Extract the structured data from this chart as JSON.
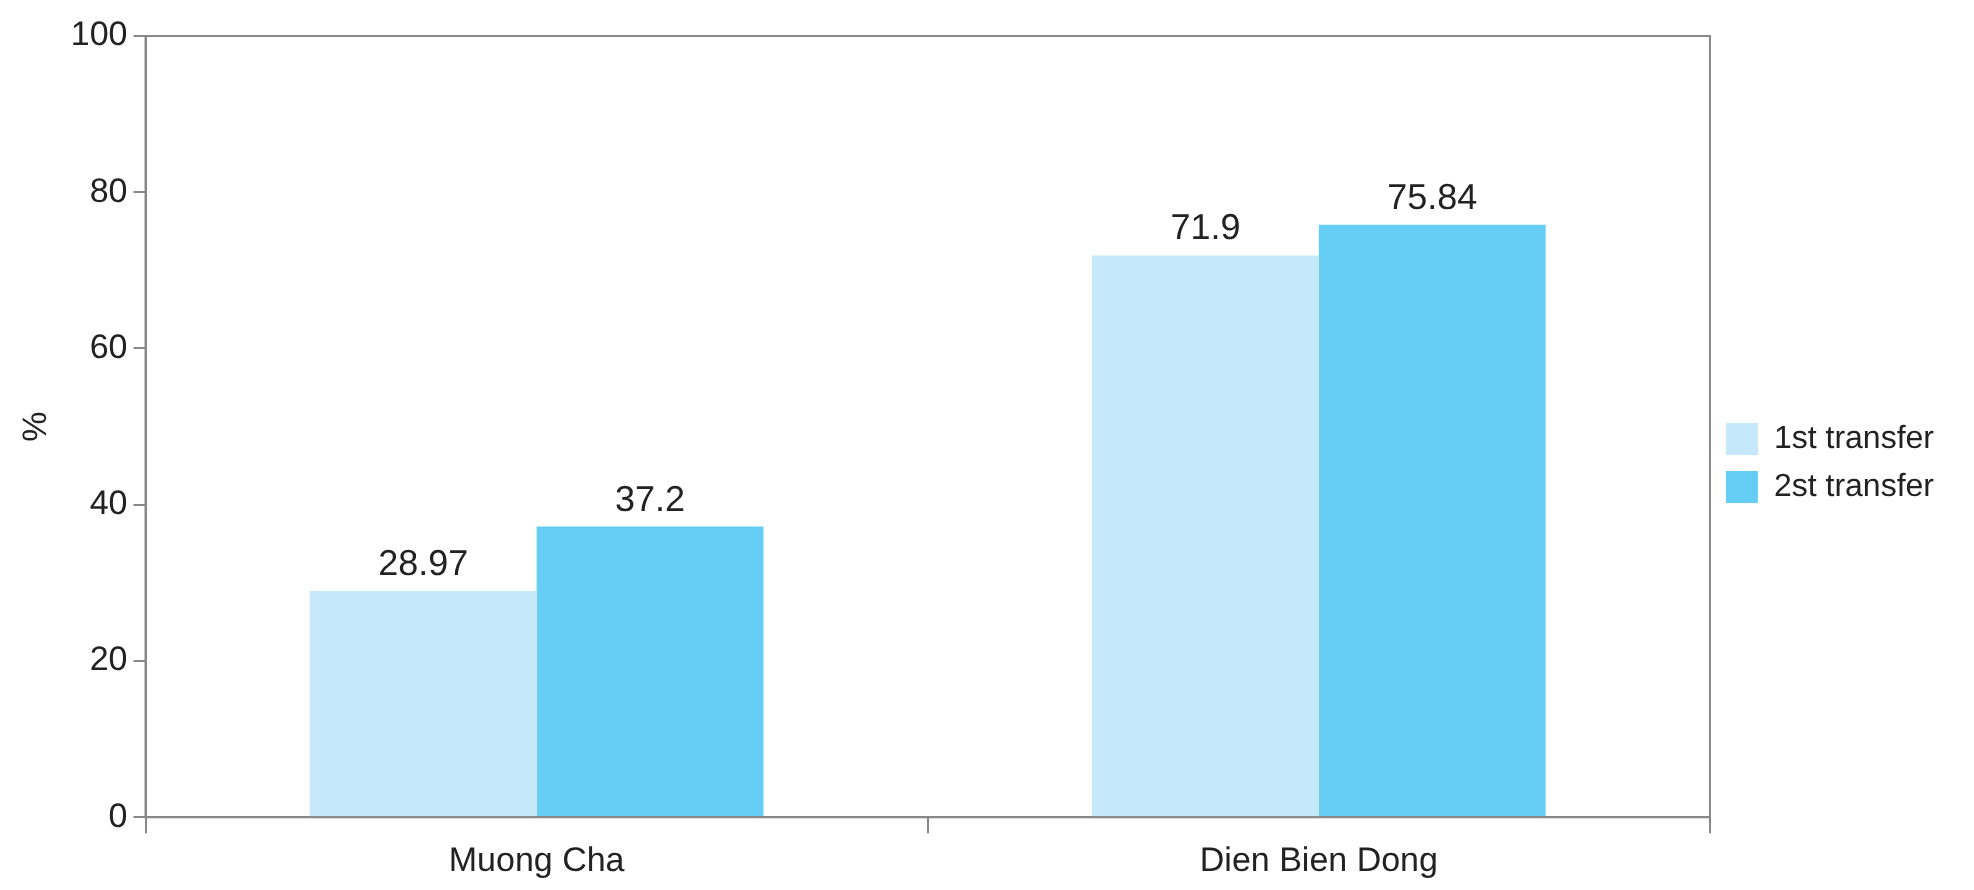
{
  "chart_data": {
    "type": "bar",
    "ylabel": "%",
    "categories": [
      "Muong Cha",
      "Dien Bien Dong"
    ],
    "series": [
      {
        "name": "1st transfer",
        "color": "#c6e8fb",
        "values": [
          28.97,
          71.9
        ]
      },
      {
        "name": "2st transfer",
        "color": "#66cef4",
        "values": [
          37.2,
          75.84
        ]
      }
    ],
    "ylim": [
      0,
      100
    ],
    "yticks": [
      0,
      20,
      40,
      60,
      80,
      100
    ],
    "grid": false,
    "legend": "right",
    "data_labels": true
  }
}
